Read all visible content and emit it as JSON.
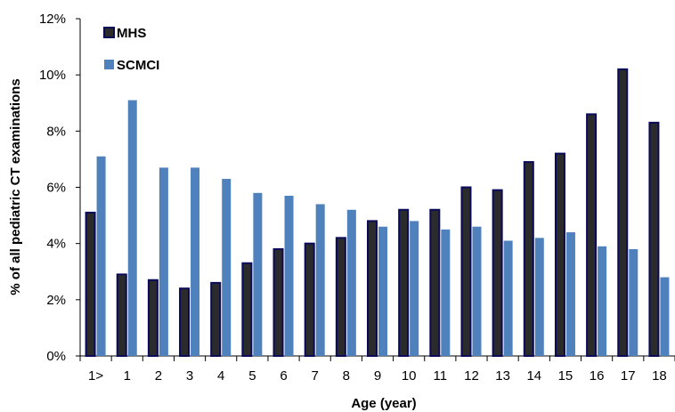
{
  "chart_data": {
    "type": "bar",
    "xlabel": "Age (year)",
    "ylabel": "% of all pediatric CT examinations",
    "ylim": [
      0,
      12
    ],
    "yticks": [
      "0%",
      "2%",
      "4%",
      "6%",
      "8%",
      "10%",
      "12%"
    ],
    "grid": false,
    "legend_position": "top-left",
    "categories": [
      "1>",
      "1",
      "2",
      "3",
      "4",
      "5",
      "6",
      "7",
      "8",
      "9",
      "10",
      "11",
      "12",
      "13",
      "14",
      "15",
      "16",
      "17",
      "18"
    ],
    "series": [
      {
        "name": "MHS",
        "color": "#2b2b2b",
        "edge_color": "#0a0a5a",
        "values": [
          5.1,
          2.9,
          2.7,
          2.4,
          2.6,
          3.3,
          3.8,
          4.0,
          4.2,
          4.8,
          5.2,
          5.2,
          6.0,
          5.9,
          6.9,
          7.2,
          8.6,
          10.2,
          8.3
        ]
      },
      {
        "name": "SCMCI",
        "color": "#4f81bd",
        "edge_color": "#4f81bd",
        "values": [
          7.1,
          9.1,
          6.7,
          6.7,
          6.3,
          5.8,
          5.7,
          5.4,
          5.2,
          4.6,
          4.8,
          4.5,
          4.6,
          4.1,
          4.2,
          4.4,
          3.9,
          3.8,
          2.8
        ]
      }
    ]
  }
}
